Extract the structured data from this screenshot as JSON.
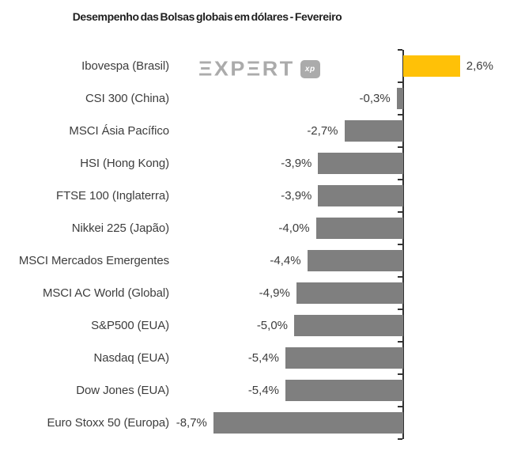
{
  "watermark": {
    "text": "EXPERT",
    "display": "ΞXPΞRT",
    "badge": "xp"
  },
  "colors": {
    "positive_bar": "#FFC107",
    "negative_bar": "#7F7F7F",
    "axis": "#333333",
    "label": "#3D3D3D",
    "title": "#1F1F1F",
    "watermark": "#ABABAB",
    "background": "#FFFFFF"
  },
  "chart_data": {
    "type": "bar",
    "orientation": "horizontal",
    "title": "Desempenho das Bolsas globais em dólares - Fevereiro",
    "unit": "%",
    "categories": [
      "Ibovespa (Brasil)",
      "CSI 300 (China)",
      "MSCI Ásia Pacífico",
      "HSI (Hong Kong)",
      "FTSE 100 (Inglaterra)",
      "Nikkei 225 (Japão)",
      "MSCI Mercados Emergentes",
      "MSCI AC World (Global)",
      "S&P500 (EUA)",
      "Nasdaq (EUA)",
      "Dow Jones (EUA)",
      "Euro Stoxx 50 (Europa)"
    ],
    "values": [
      2.6,
      -0.3,
      -2.7,
      -3.9,
      -3.9,
      -4.0,
      -4.4,
      -4.9,
      -5.0,
      -5.4,
      -5.4,
      -8.7
    ],
    "value_labels": [
      "2,6%",
      "-0,3%",
      "-2,7%",
      "-3,9%",
      "-3,9%",
      "-4,0%",
      "-4,4%",
      "-4,9%",
      "-5,0%",
      "-5,4%",
      "-5,4%",
      "-8,7%"
    ],
    "baseline": 0,
    "grid": false,
    "legend": null,
    "value_axis_tick_labels_visible": false,
    "data_labels_visible": true
  }
}
